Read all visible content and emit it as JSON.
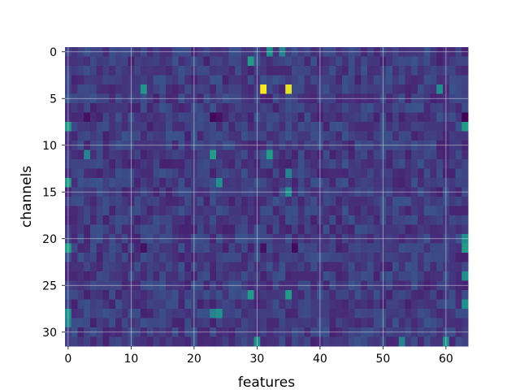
{
  "chart_data": {
    "type": "heatmap",
    "title": "",
    "xlabel": "features",
    "ylabel": "channels",
    "n_cols": 64,
    "n_rows": 32,
    "xlim": [
      -0.5,
      63.5
    ],
    "ylim": [
      31.5,
      -0.5
    ],
    "x_ticks": [
      0,
      10,
      20,
      30,
      40,
      50,
      60
    ],
    "y_ticks": [
      0,
      5,
      10,
      15,
      20,
      25,
      30
    ],
    "grid": true,
    "colormap": "viridis",
    "value_range": [
      0,
      1
    ],
    "background_value": 0.18,
    "highlights": [
      {
        "row": 4,
        "col": 31,
        "value": 1.0
      },
      {
        "row": 4,
        "col": 35,
        "value": 0.96
      },
      {
        "row": 4,
        "col": 12,
        "value": 0.52
      },
      {
        "row": 4,
        "col": 59,
        "value": 0.5
      },
      {
        "row": 1,
        "col": 29,
        "value": 0.55
      },
      {
        "row": 0,
        "col": 32,
        "value": 0.5
      },
      {
        "row": 0,
        "col": 34,
        "value": 0.45
      },
      {
        "row": 8,
        "col": 0,
        "value": 0.55
      },
      {
        "row": 8,
        "col": 63,
        "value": 0.55
      },
      {
        "row": 7,
        "col": 63,
        "value": 0.0
      },
      {
        "row": 7,
        "col": 23,
        "value": 0.02
      },
      {
        "row": 7,
        "col": 24,
        "value": 0.05
      },
      {
        "row": 7,
        "col": 3,
        "value": 0.05
      },
      {
        "row": 11,
        "col": 23,
        "value": 0.55
      },
      {
        "row": 11,
        "col": 32,
        "value": 0.55
      },
      {
        "row": 11,
        "col": 3,
        "value": 0.45
      },
      {
        "row": 14,
        "col": 0,
        "value": 0.55
      },
      {
        "row": 14,
        "col": 24,
        "value": 0.5
      },
      {
        "row": 13,
        "col": 35,
        "value": 0.45
      },
      {
        "row": 15,
        "col": 35,
        "value": 0.5
      },
      {
        "row": 21,
        "col": 0,
        "value": 0.55
      },
      {
        "row": 21,
        "col": 63,
        "value": 0.55
      },
      {
        "row": 20,
        "col": 63,
        "value": 0.5
      },
      {
        "row": 21,
        "col": 36,
        "value": 0.03
      },
      {
        "row": 21,
        "col": 31,
        "value": 0.05
      },
      {
        "row": 21,
        "col": 12,
        "value": 0.05
      },
      {
        "row": 26,
        "col": 29,
        "value": 0.55
      },
      {
        "row": 26,
        "col": 35,
        "value": 0.55
      },
      {
        "row": 24,
        "col": 63,
        "value": 0.5
      },
      {
        "row": 28,
        "col": 0,
        "value": 0.5
      },
      {
        "row": 28,
        "col": 24,
        "value": 0.5
      },
      {
        "row": 28,
        "col": 23,
        "value": 0.45
      },
      {
        "row": 27,
        "col": 63,
        "value": 0.5
      },
      {
        "row": 31,
        "col": 30,
        "value": 0.5
      },
      {
        "row": 31,
        "col": 53,
        "value": 0.45
      },
      {
        "row": 31,
        "col": 60,
        "value": 0.5
      },
      {
        "row": 29,
        "col": 0,
        "value": 0.45
      }
    ]
  }
}
